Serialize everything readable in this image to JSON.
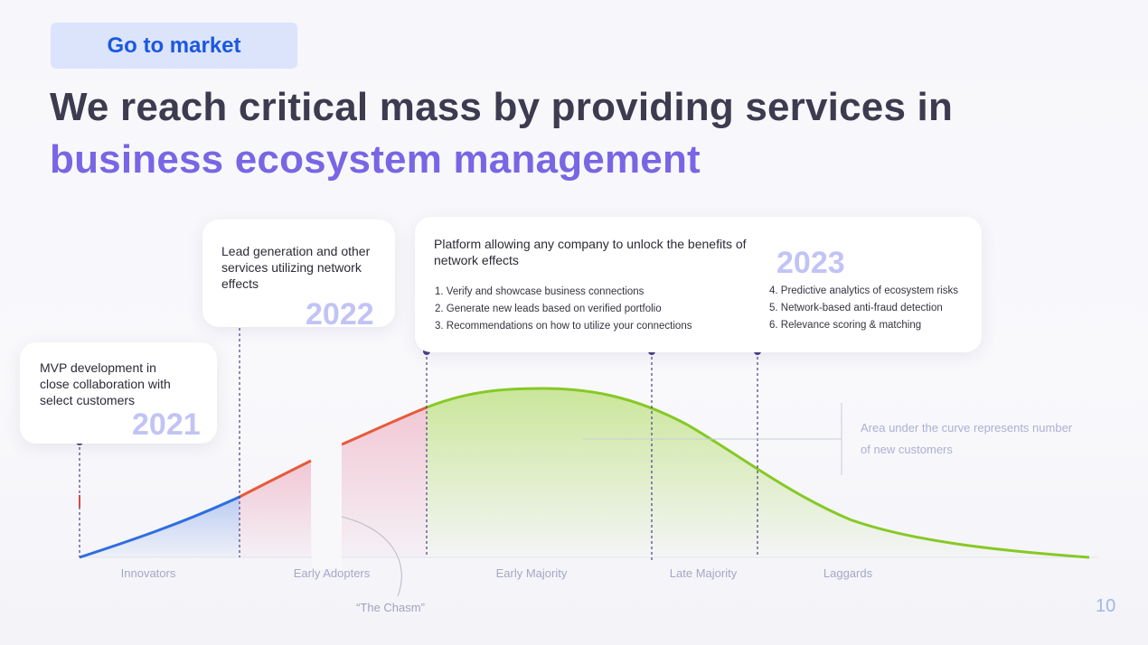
{
  "tag": {
    "label": "Go to market"
  },
  "title": {
    "line1": "We reach critical mass by providing services in",
    "line2": "business ecosystem management"
  },
  "milestones": [
    {
      "year": "2021",
      "text": "MVP development in close collaboration with select customers"
    },
    {
      "year": "2022",
      "text": "Lead generation and other services utilizing network effects"
    },
    {
      "year": "2023",
      "text": "Platform allowing any company to unlock the benefits of network effects",
      "items_left": [
        "1. Verify and showcase business connections",
        "2. Generate new leads based on verified portfolio",
        "3. Recommendations on how to utilize your connections"
      ],
      "items_right": [
        "4. Predictive analytics of ecosystem risks",
        "5. Network-based anti-fraud detection",
        "6. Relevance scoring & matching"
      ]
    }
  ],
  "segments": [
    "Innovators",
    "Early Adopters",
    "Early Majority",
    "Late Majority",
    "Laggards"
  ],
  "chasm_label": "“The Chasm”",
  "note": "Area under the curve represents number of new customers",
  "page_number": "10",
  "colors": {
    "innovators": "#2f6ee0",
    "early_adopters": "#e65a3a",
    "majority": "#86c925",
    "accent": "#7866e4",
    "tag_text": "#1b58e0",
    "year": "#c2c3f5"
  }
}
